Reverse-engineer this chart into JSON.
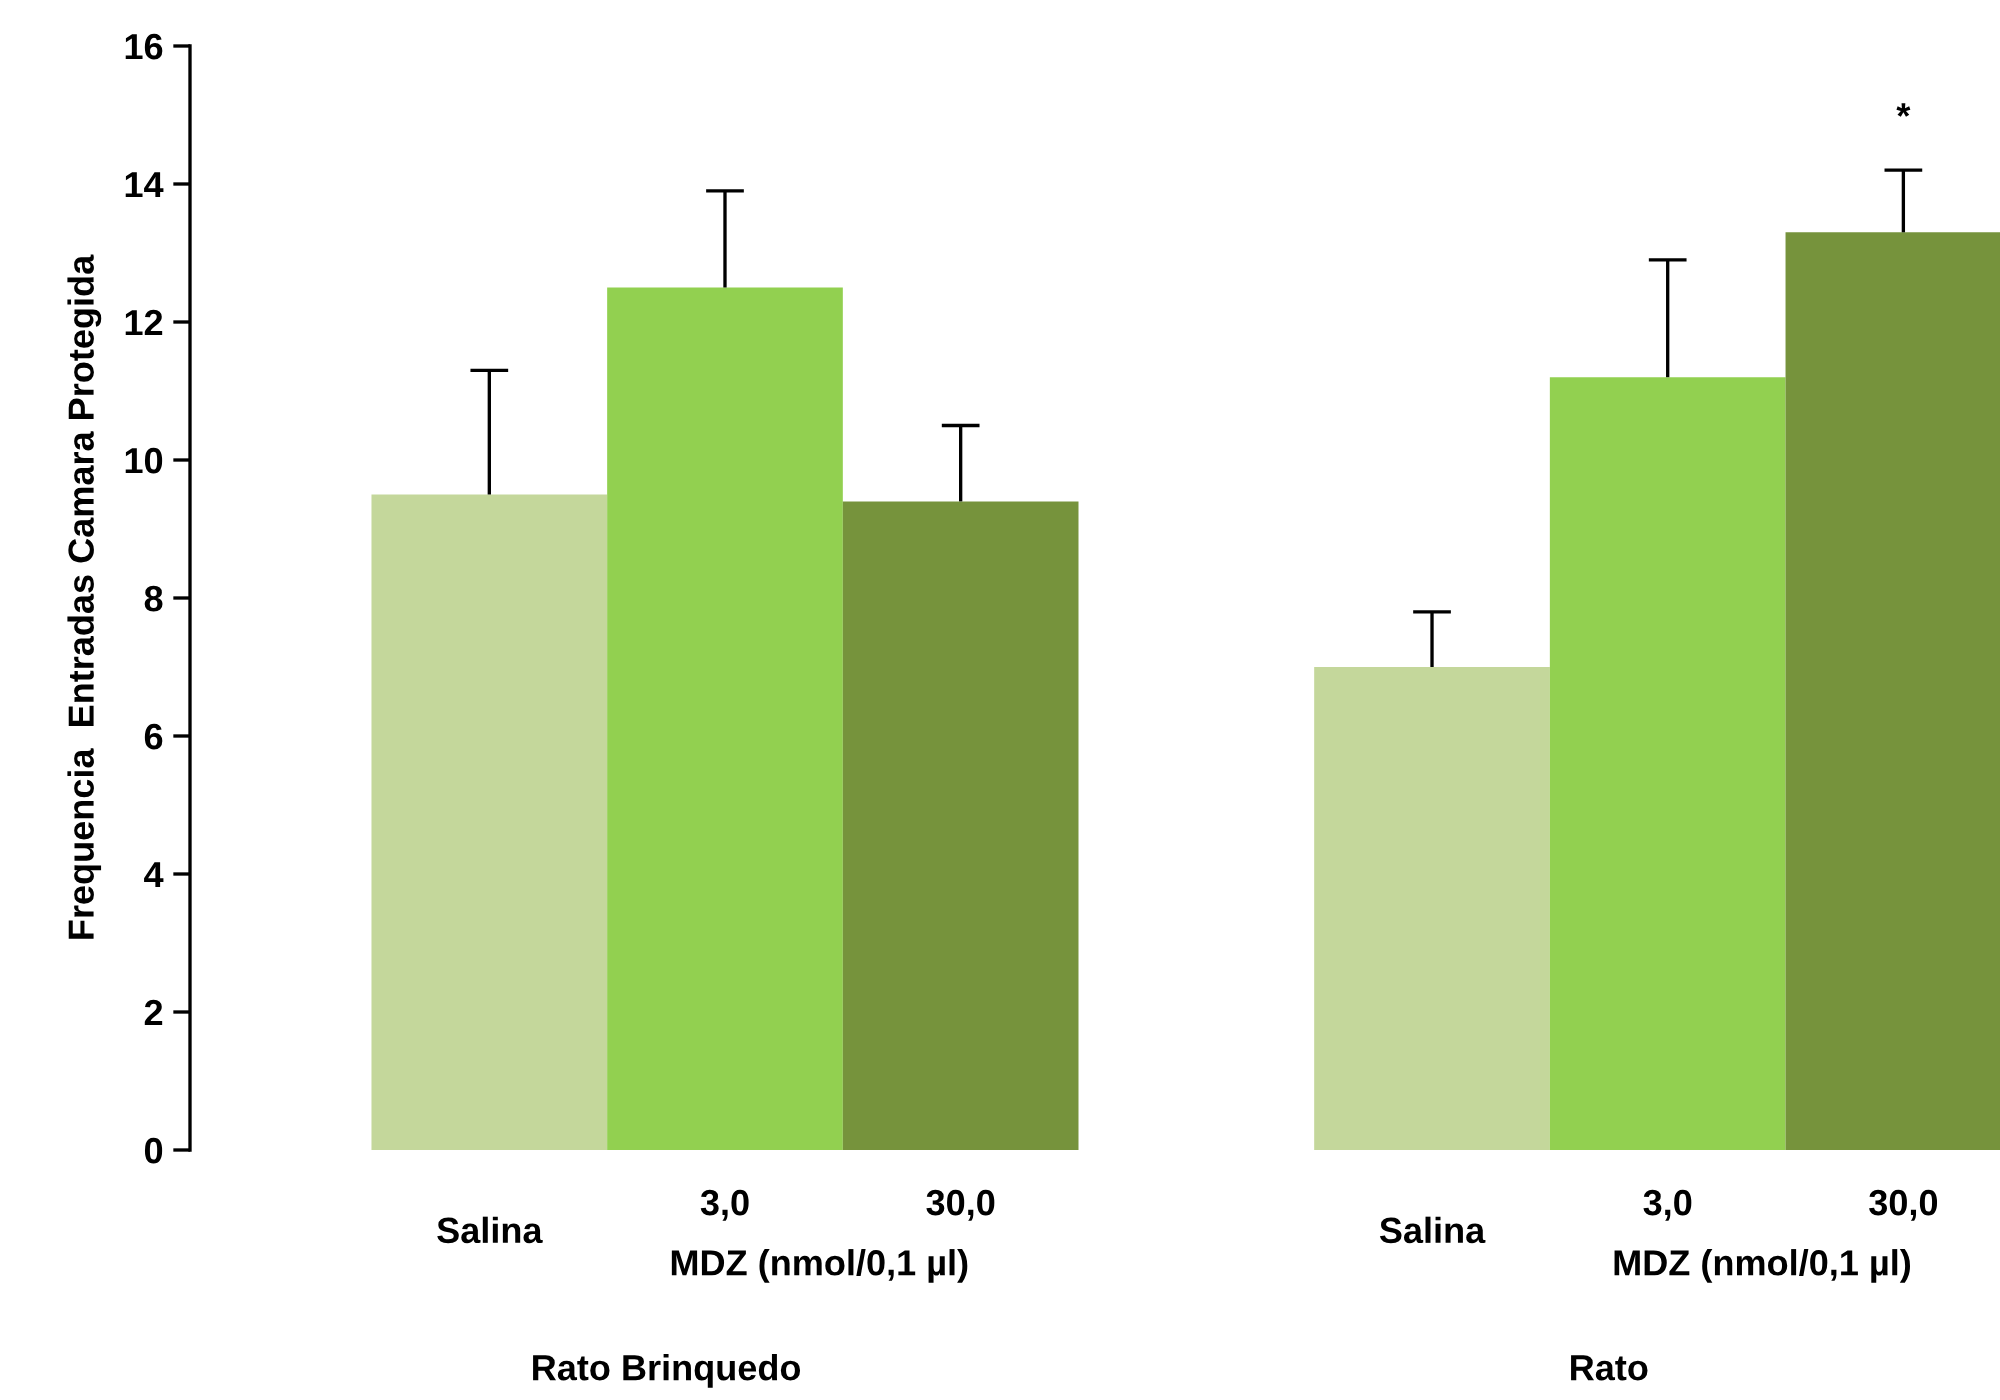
{
  "chart_data": {
    "type": "bar",
    "ylabel": "Frequencia  Entradas Camara Protegida",
    "categories": [
      "Salina",
      "3,0",
      "30,0",
      null,
      "Salina",
      "3,0",
      "30,0"
    ],
    "values": [
      9.5,
      12.5,
      9.4,
      null,
      7.0,
      11.2,
      13.3
    ],
    "colors": [
      "#c4d79b",
      "#92d050",
      "#76933c",
      "#ffffff",
      "#c4d79b",
      "#92d050",
      "#76933c"
    ],
    "errors": [
      [
        9.5,
        11.3
      ],
      [
        12.5,
        13.9
      ],
      [
        9.4,
        10.5
      ],
      null,
      [
        7.0,
        7.8
      ],
      [
        11.2,
        12.9
      ],
      [
        13.3,
        14.2
      ]
    ],
    "ylim": [
      0,
      16
    ],
    "yticks": [
      0,
      2,
      4,
      6,
      8,
      10,
      12,
      14,
      16
    ],
    "grid": false,
    "legend": false,
    "annotations": [
      "*",
      "MDZ (nmol/0,1 µl)",
      "Rato Brinquedo",
      "MDZ (nmol/0,1 µl)",
      "Rato"
    ]
  }
}
